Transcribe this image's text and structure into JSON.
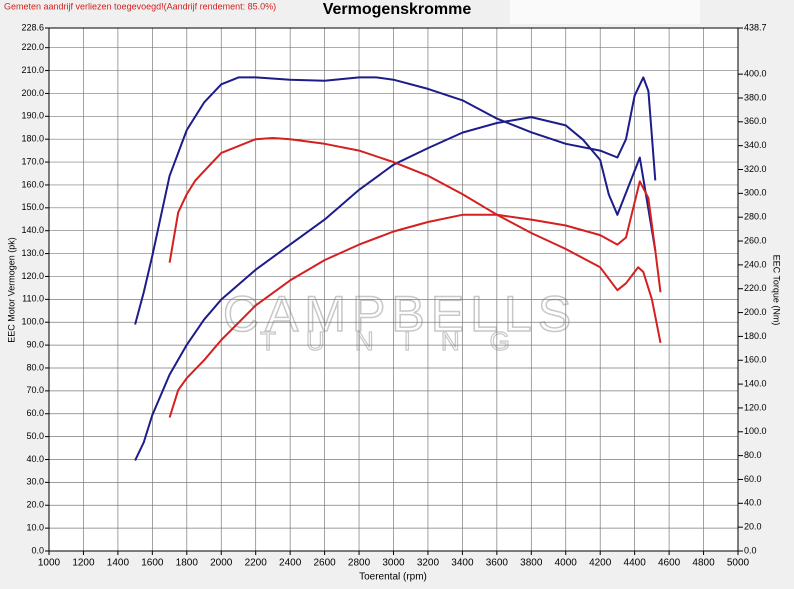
{
  "chart_data": {
    "type": "line",
    "title": "Vermogenskromme",
    "note": "Gemeten aandrijf verliezen toegevoegd!(Aandrijf rendement: 85.0%)",
    "xlabel": "Toerental (rpm)",
    "ylabel": "EEC Motor Vermogen (pk)",
    "y2label": "EEC Torque (Nm)",
    "watermark": [
      "CAMPBELLS",
      "TUNING"
    ],
    "grid": true,
    "xlim": [
      1000,
      5000
    ],
    "xticks": [
      1000,
      1200,
      1400,
      1600,
      1800,
      2000,
      2200,
      2400,
      2600,
      2800,
      3000,
      3200,
      3400,
      3600,
      3800,
      4000,
      4200,
      4400,
      4600,
      4800,
      5000
    ],
    "ylim": [
      0,
      228.6
    ],
    "yticks": [
      {
        "value": 0,
        "label": "0.0"
      },
      {
        "value": 10,
        "label": "10.0"
      },
      {
        "value": 20,
        "label": "20.0"
      },
      {
        "value": 30,
        "label": "30.0"
      },
      {
        "value": 40,
        "label": "40.0"
      },
      {
        "value": 50,
        "label": "50.0"
      },
      {
        "value": 60,
        "label": "60.0"
      },
      {
        "value": 70,
        "label": "70.0"
      },
      {
        "value": 80,
        "label": "80.0"
      },
      {
        "value": 90,
        "label": "90.0"
      },
      {
        "value": 100,
        "label": "100.0"
      },
      {
        "value": 110,
        "label": "110.0"
      },
      {
        "value": 120,
        "label": "120.0"
      },
      {
        "value": 130,
        "label": "130.0"
      },
      {
        "value": 140,
        "label": "140.0"
      },
      {
        "value": 150,
        "label": "150.0"
      },
      {
        "value": 160,
        "label": "160.0"
      },
      {
        "value": 170,
        "label": "170.0"
      },
      {
        "value": 180,
        "label": "180.0"
      },
      {
        "value": 190,
        "label": "190.0"
      },
      {
        "value": 200,
        "label": "200.0"
      },
      {
        "value": 210,
        "label": "210.0"
      },
      {
        "value": 220,
        "label": "220.0"
      },
      {
        "value": 228.6,
        "label": "228.6"
      }
    ],
    "y2lim": [
      0,
      438.7
    ],
    "y2ticks": [
      {
        "value": 0,
        "label": "0.0"
      },
      {
        "value": 20,
        "label": "20.0"
      },
      {
        "value": 40,
        "label": "40.0"
      },
      {
        "value": 60,
        "label": "60.0"
      },
      {
        "value": 80,
        "label": "80.0"
      },
      {
        "value": 100,
        "label": "100.0"
      },
      {
        "value": 120,
        "label": "120.0"
      },
      {
        "value": 140,
        "label": "140.0"
      },
      {
        "value": 160,
        "label": "160.0"
      },
      {
        "value": 180,
        "label": "180.0"
      },
      {
        "value": 200,
        "label": "200.0"
      },
      {
        "value": 220,
        "label": "220.0"
      },
      {
        "value": 240,
        "label": "240.0"
      },
      {
        "value": 260,
        "label": "260.0"
      },
      {
        "value": 280,
        "label": "280.0"
      },
      {
        "value": 300,
        "label": "300.0"
      },
      {
        "value": 320,
        "label": "320.0"
      },
      {
        "value": 340,
        "label": "340.0"
      },
      {
        "value": 360,
        "label": "360.0"
      },
      {
        "value": 380,
        "label": "380.0"
      },
      {
        "value": 400,
        "label": "400.0"
      },
      {
        "value": 438.7,
        "label": "438.7"
      }
    ],
    "series": [
      {
        "color": "#1c1c8a",
        "axis": "y",
        "x": [
          1500,
          1550,
          1600,
          1700,
          1800,
          1900,
          2000,
          2100,
          2200,
          2400,
          2600,
          2800,
          2900,
          3000,
          3200,
          3400,
          3600,
          3800,
          4000,
          4200,
          4300,
          4350,
          4400,
          4450,
          4480,
          4520
        ],
        "values": [
          99,
          113,
          129,
          164,
          184,
          196,
          204,
          207,
          207,
          206,
          205.5,
          207,
          207,
          206,
          202,
          197,
          189,
          183,
          178,
          175,
          172,
          180,
          199,
          207,
          201,
          162
        ]
      },
      {
        "color": "#1c1c8a",
        "axis": "y2",
        "x": [
          1500,
          1550,
          1600,
          1700,
          1800,
          1900,
          2000,
          2200,
          2400,
          2600,
          2800,
          3000,
          3200,
          3400,
          3600,
          3800,
          4000,
          4100,
          4200,
          4250,
          4300,
          4430,
          4520
        ],
        "values": [
          76,
          91,
          114,
          148,
          173,
          194,
          211,
          236,
          257,
          278,
          303,
          324,
          338,
          351,
          359,
          364,
          357,
          345,
          328,
          299,
          282,
          330,
          252
        ]
      },
      {
        "color": "#d42020",
        "axis": "y",
        "x": [
          1700,
          1750,
          1800,
          1850,
          1900,
          2000,
          2200,
          2300,
          2400,
          2600,
          2800,
          3000,
          3200,
          3400,
          3600,
          3800,
          4000,
          4200,
          4300,
          4350,
          4420,
          4450,
          4500,
          4550
        ],
        "values": [
          126,
          148,
          156,
          162,
          166,
          174,
          180,
          180.5,
          180,
          178,
          175,
          170,
          164,
          156,
          147,
          139,
          132,
          124,
          114,
          117,
          124,
          122,
          110,
          91
        ]
      },
      {
        "color": "#d42020",
        "axis": "y2",
        "x": [
          1700,
          1750,
          1800,
          1900,
          2000,
          2200,
          2400,
          2600,
          2800,
          3000,
          3200,
          3400,
          3600,
          3800,
          4000,
          4200,
          4300,
          4350,
          4430,
          4480,
          4520,
          4550
        ],
        "values": [
          112,
          135,
          145,
          160,
          177,
          206,
          227,
          244,
          257,
          268,
          276,
          282,
          282,
          278,
          273,
          265,
          257,
          263,
          310,
          296,
          252,
          217
        ]
      }
    ]
  }
}
